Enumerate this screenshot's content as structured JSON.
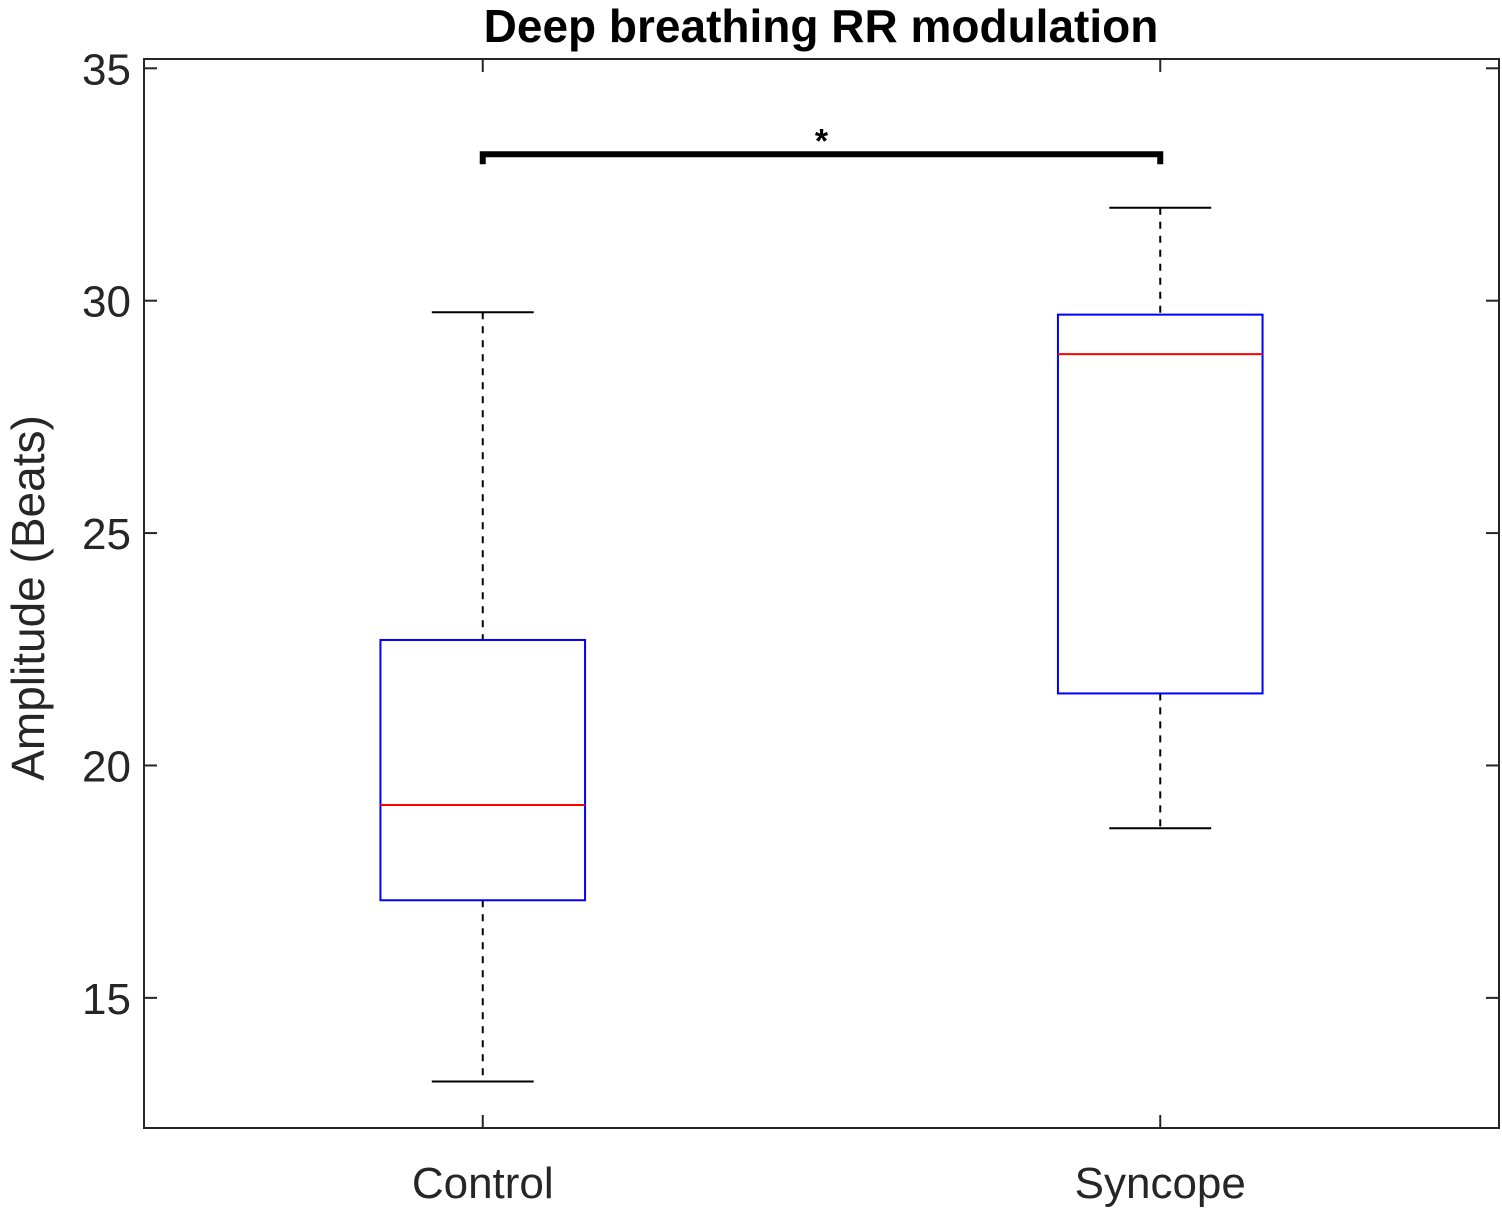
{
  "chart_data": {
    "type": "box",
    "title": "Deep breathing RR modulation",
    "xlabel": "",
    "ylabel": "Amplitude (Beats)",
    "ylim": [
      12.2,
      35.2
    ],
    "yticks": [
      15,
      20,
      25,
      30,
      35
    ],
    "grid": false,
    "categories": [
      "Control",
      "Syncope"
    ],
    "boxes": [
      {
        "category": "Control",
        "whisker_low": 13.2,
        "q1": 17.1,
        "median": 19.15,
        "q3": 22.7,
        "whisker_high": 29.75
      },
      {
        "category": "Syncope",
        "whisker_low": 18.65,
        "q1": 21.55,
        "median": 28.85,
        "q3": 29.7,
        "whisker_high": 32.0
      }
    ],
    "significance": {
      "from": "Control",
      "to": "Syncope",
      "y": 33.15,
      "label": "*"
    },
    "colors": {
      "box": "#0000ff",
      "median": "#ff0000",
      "whisker": "#000000",
      "bracket": "#000000",
      "axis": "#262626"
    }
  }
}
